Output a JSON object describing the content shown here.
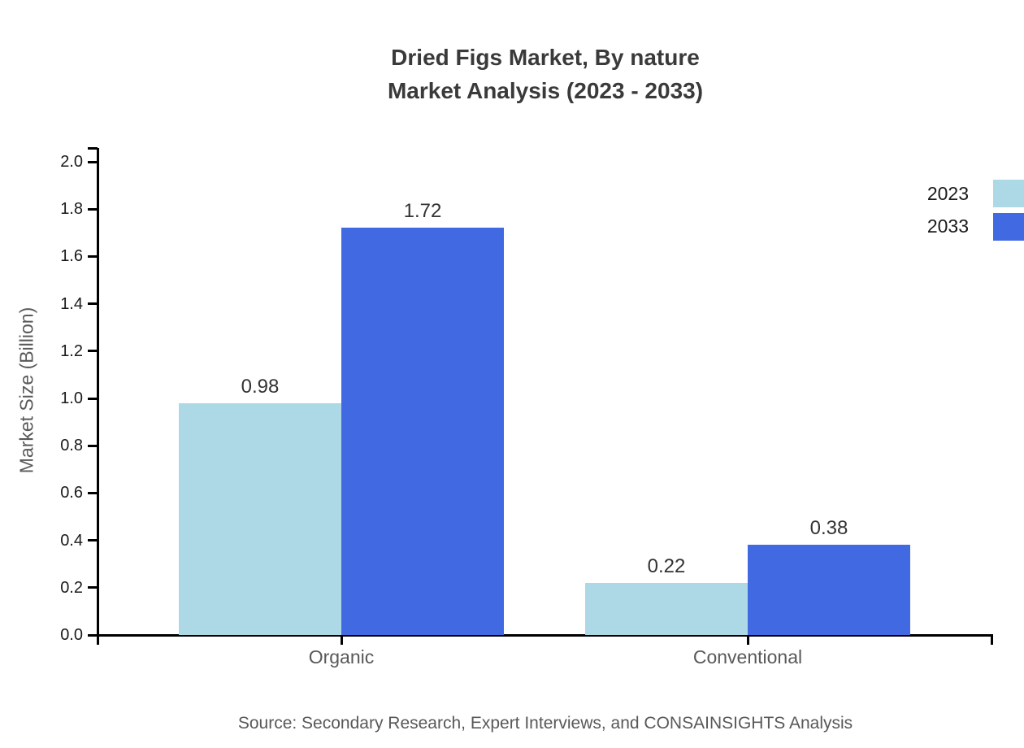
{
  "chart_data": {
    "type": "bar",
    "title": "Dried Figs Market, By nature",
    "subtitle": "Market Analysis (2023 - 2033)",
    "categories": [
      "Organic",
      "Conventional"
    ],
    "series": [
      {
        "name": "2023",
        "color": "#ADD8E6",
        "values": [
          0.98,
          0.22
        ]
      },
      {
        "name": "2033",
        "color": "#4169E1",
        "values": [
          1.72,
          0.38
        ]
      }
    ],
    "value_labels": [
      [
        "0.98",
        "0.22"
      ],
      [
        "1.72",
        "0.38"
      ]
    ],
    "xlabel": "",
    "ylabel": "Market Size (Billion)",
    "ylim": [
      0.0,
      2.0
    ],
    "ytick_step": 0.2,
    "ytick_labels": [
      "0.0",
      "0.2",
      "0.4",
      "0.6",
      "0.8",
      "1.0",
      "1.2",
      "1.4",
      "1.6",
      "1.8",
      "2.0"
    ],
    "grid": false,
    "legend_position": "right-edge-cropped",
    "axis_color": "#000000",
    "tick_label_color": "#1a1a1a",
    "category_label_color": "#595959",
    "title_color": "#3a3a3a",
    "source_note": "Source: Secondary Research, Expert Interviews, and CONSAINSIGHTS Analysis"
  }
}
